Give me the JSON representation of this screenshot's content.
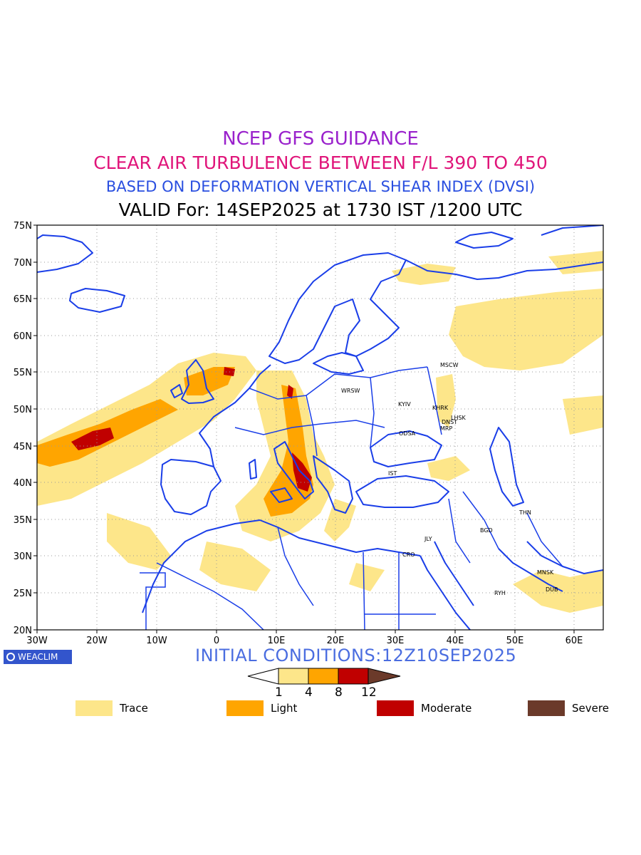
{
  "titles": {
    "line1": "NCEP GFS GUIDANCE",
    "line2": "CLEAR AIR TURBULENCE BETWEEN F/L 390 TO 450",
    "line3": "BASED ON DEFORMATION VERTICAL SHEAR INDEX (DVSI)",
    "line4": "VALID For: 14SEP2025 at 1730 IST /1200 UTC"
  },
  "colors": {
    "title1": "#9a22cc",
    "title2": "#e0157a",
    "title3": "#2a4fe0",
    "trace": "#fde68a",
    "light": "#ffa500",
    "moderate": "#c00000",
    "severe": "#6b3a2a",
    "coast": "#1a3ee8"
  },
  "map": {
    "lat_labels": [
      "75N",
      "70N",
      "65N",
      "60N",
      "55N",
      "50N",
      "45N",
      "40N",
      "35N",
      "30N",
      "25N",
      "20N"
    ],
    "lon_labels": [
      "30W",
      "20W",
      "10W",
      "0",
      "10E",
      "20E",
      "30E",
      "40E",
      "50E",
      "60E"
    ],
    "cities": [
      {
        "name": "MSCW"
      },
      {
        "name": "WRSW"
      },
      {
        "name": "KYIV"
      },
      {
        "name": "KHRK"
      },
      {
        "name": "LHSK"
      },
      {
        "name": "DNST"
      },
      {
        "name": "MRP"
      },
      {
        "name": "ODSA"
      },
      {
        "name": "IST"
      },
      {
        "name": "THN"
      },
      {
        "name": "BGD"
      },
      {
        "name": "JLY"
      },
      {
        "name": "CRO"
      },
      {
        "name": "MNSK"
      },
      {
        "name": "RYH"
      },
      {
        "name": "DUB"
      }
    ]
  },
  "footer": {
    "brand": "WEACLIM",
    "initial_conditions": "INITIAL CONDITIONS:12Z10SEP2025"
  },
  "colorbar": {
    "ticks": [
      "1",
      "4",
      "8",
      "12"
    ]
  },
  "legend": [
    {
      "label": "Trace",
      "color": "#fde68a"
    },
    {
      "label": "Light",
      "color": "#ffa500"
    },
    {
      "label": "Moderate",
      "color": "#c00000"
    },
    {
      "label": "Severe",
      "color": "#6b3a2a"
    }
  ]
}
